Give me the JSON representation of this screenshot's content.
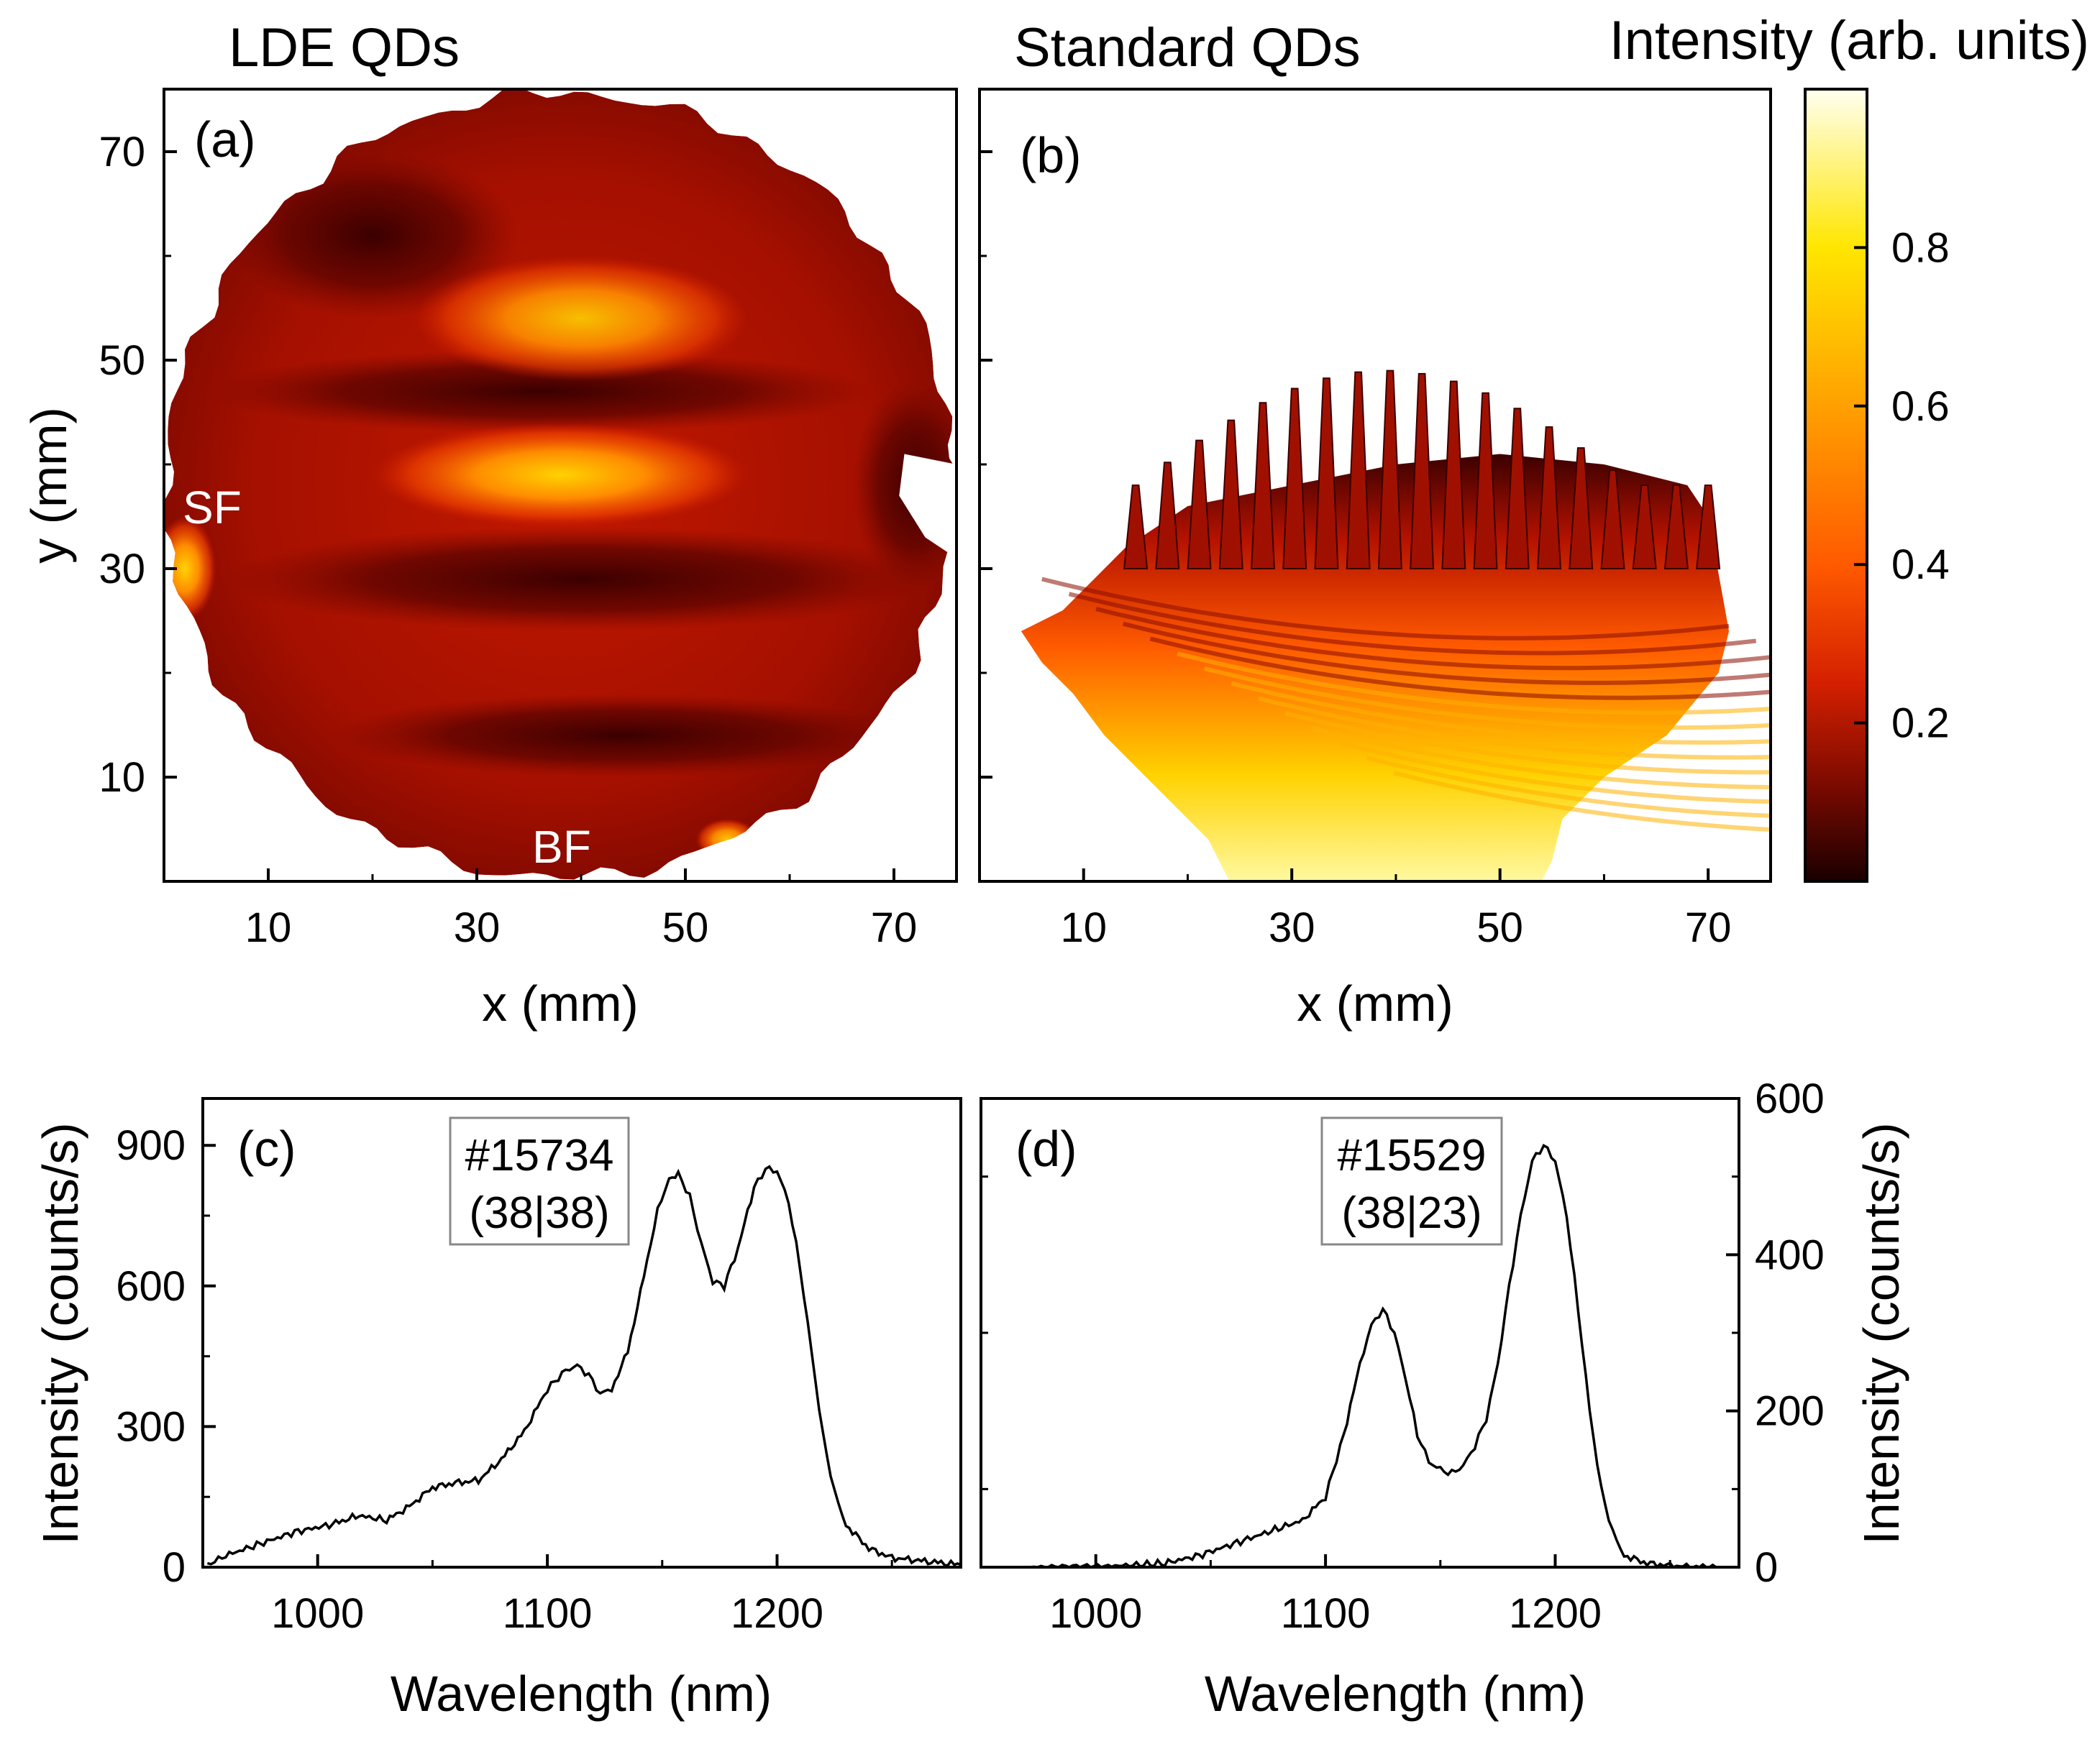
{
  "figure": {
    "titles": {
      "a": "LDE QDs",
      "b": "Standard QDs",
      "colorbar": "Intensity (arb. units)"
    }
  },
  "chart_data": [
    {
      "id": "a",
      "type": "heatmap",
      "panel_label": "(a)",
      "title": "LDE QDs",
      "xlabel": "x (mm)",
      "ylabel": "y (mm)",
      "xlim": [
        0,
        76
      ],
      "ylim": [
        0,
        76
      ],
      "xticks": [
        10,
        30,
        50,
        70
      ],
      "yticks": [
        10,
        30,
        50,
        70
      ],
      "annotations": [
        {
          "text": "SF",
          "x": 4,
          "y": 36
        },
        {
          "text": "BF",
          "x": 38,
          "y": 3
        }
      ],
      "wafer": {
        "center_x": 38,
        "center_y": 38,
        "radius": 38
      },
      "bands": [
        {
          "y": 54,
          "x_center": 40,
          "half_width": 16,
          "half_height": 6,
          "value": 0.55
        },
        {
          "y": 39,
          "x_center": 38,
          "half_width": 18,
          "half_height": 5,
          "value": 0.65
        },
        {
          "y": 30,
          "x_center": 2,
          "half_width": 3,
          "half_height": 5,
          "value": 0.7
        },
        {
          "y": 4,
          "x_center": 54,
          "half_width": 3,
          "half_height": 2,
          "value": 0.6
        }
      ],
      "value_range": [
        0,
        1
      ]
    },
    {
      "id": "b",
      "type": "heatmap",
      "panel_label": "(b)",
      "title": "Standard QDs",
      "xlabel": "x (mm)",
      "ylabel": "",
      "xlim": [
        0,
        76
      ],
      "ylim": [
        0,
        76
      ],
      "xticks": [
        10,
        30,
        50,
        70
      ],
      "yticks": [
        10,
        30,
        50,
        70
      ],
      "fringes": {
        "count": 19,
        "x_start": 15,
        "x_end": 70,
        "peak_y_range": [
          38,
          49
        ]
      },
      "value_range": [
        0,
        1
      ]
    },
    {
      "id": "colorbar",
      "type": "colorbar",
      "label": "Intensity (arb. units)",
      "range": [
        0,
        1
      ],
      "ticks": [
        0.2,
        0.4,
        0.6,
        0.8
      ],
      "colormap": [
        "#1a0000",
        "#7a0a00",
        "#d42000",
        "#ff5a00",
        "#ffa000",
        "#ffe600",
        "#fffff0"
      ]
    },
    {
      "id": "c",
      "type": "line",
      "panel_label": "(c)",
      "xlabel": "Wavelength (nm)",
      "ylabel": "Intensity (counts/s)",
      "xlim": [
        950,
        1280
      ],
      "ylim": [
        0,
        1000
      ],
      "xticks": [
        1000,
        1100,
        1200
      ],
      "yticks": [
        0,
        300,
        600,
        900
      ],
      "legend_box": {
        "line1": "#15734",
        "line2": "(38|38)"
      },
      "series": [
        {
          "name": "#15734",
          "x": [
            952,
            960,
            975,
            990,
            1005,
            1018,
            1030,
            1040,
            1050,
            1060,
            1070,
            1080,
            1090,
            1100,
            1108,
            1113,
            1118,
            1123,
            1128,
            1135,
            1142,
            1148,
            1153,
            1157,
            1162,
            1167,
            1172,
            1177,
            1183,
            1190,
            1195,
            1200,
            1205,
            1210,
            1215,
            1220,
            1225,
            1230,
            1240,
            1250,
            1260,
            1270,
            1280
          ],
          "y": [
            5,
            25,
            50,
            75,
            90,
            110,
            100,
            130,
            170,
            180,
            185,
            230,
            290,
            380,
            420,
            430,
            410,
            370,
            380,
            460,
            620,
            760,
            830,
            840,
            790,
            690,
            610,
            600,
            680,
            810,
            850,
            845,
            780,
            640,
            460,
            280,
            160,
            90,
            40,
            20,
            15,
            10,
            5
          ]
        }
      ]
    },
    {
      "id": "d",
      "type": "line",
      "panel_label": "(d)",
      "xlabel": "Wavelength (nm)",
      "ylabel": "Intensity (counts/s)",
      "y_axis_side": "right",
      "xlim": [
        950,
        1280
      ],
      "ylim": [
        0,
        600
      ],
      "xticks": [
        1000,
        1100,
        1200
      ],
      "yticks": [
        0,
        200,
        400,
        600
      ],
      "legend_box": {
        "line1": "#15529",
        "line2": "(38|23)"
      },
      "series": [
        {
          "name": "#15529",
          "x": [
            970,
            990,
            1010,
            1030,
            1045,
            1060,
            1075,
            1090,
            1100,
            1108,
            1115,
            1120,
            1125,
            1130,
            1135,
            1140,
            1145,
            1150,
            1155,
            1160,
            1165,
            1170,
            1175,
            1180,
            1185,
            1190,
            1195,
            1200,
            1205,
            1210,
            1215,
            1220,
            1225,
            1230,
            1240,
            1250,
            1260,
            1270
          ],
          "y": [
            0,
            0,
            2,
            5,
            15,
            30,
            45,
            60,
            90,
            170,
            260,
            310,
            330,
            300,
            240,
            170,
            135,
            125,
            120,
            130,
            155,
            190,
            260,
            360,
            450,
            520,
            540,
            520,
            450,
            330,
            200,
            100,
            45,
            15,
            5,
            2,
            0,
            0
          ]
        }
      ]
    }
  ]
}
